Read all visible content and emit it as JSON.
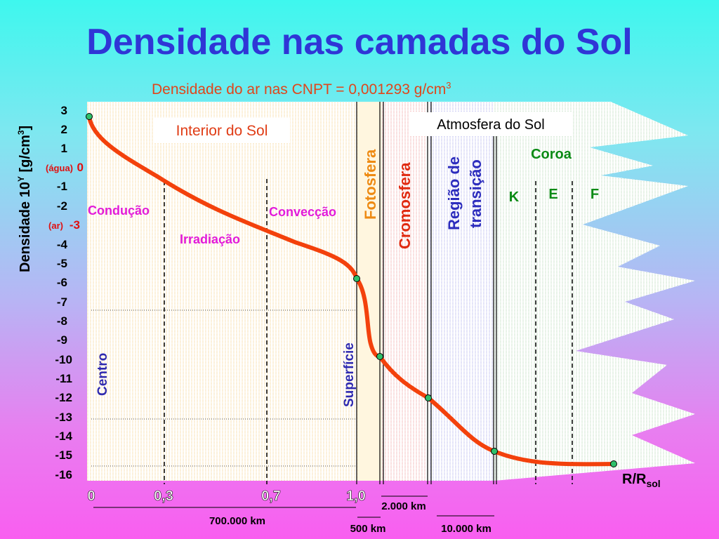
{
  "title": "Densidade nas camadas do Sol",
  "chart_data": {
    "type": "line",
    "subtitle": "Densidade do ar nas CNPT = 0,001293 g/cm",
    "subtitle_sup": "3",
    "ylabel": "Densidade 10",
    "ylabel_sup": "Y",
    "ylabel_unit": " [g/cm",
    "ylabel_unit_sup": "3",
    "ylabel_end": "]",
    "yticks": [
      "3",
      "2",
      "1",
      "0",
      "-1",
      "-2",
      "-3",
      "-4",
      "-5",
      "-6",
      "-7",
      "-8",
      "-9",
      "-10",
      "-11",
      "-12",
      "-13",
      "-14",
      "-15",
      "-16"
    ],
    "ytick_notes": {
      "agua": "(água)",
      "ar": "(ar)"
    },
    "xticks": [
      "0",
      "0,3",
      "0,7",
      "1,0"
    ],
    "xlabel": "R/R",
    "xlabel_sub": "sol",
    "scale_labels": {
      "a": "700.000 km",
      "b": "2.000 km",
      "c": "500 km",
      "d": "10.000 km"
    },
    "regions": {
      "interior": "Interior do Sol",
      "atmosfera": "Atmosfera do Sol",
      "coroa": "Coroa",
      "conducao": "Condução",
      "conveccao": "Convecção",
      "irradiacao": "Irradiação",
      "centro": "Centro",
      "superficie": "Superfície",
      "fotosfera": "Fotosfera",
      "cromosfera": "Cromosfera",
      "regiao1": "Região de",
      "regiao2": "transição",
      "k": "K",
      "e": "E",
      "f": "F"
    },
    "ylim": [
      -16,
      3
    ],
    "series": [
      {
        "color": "#f3410c",
        "points": [
          {
            "x": 0,
            "y": 2.6
          },
          {
            "x": 0.05,
            "y": 0.8
          },
          {
            "x": 0.15,
            "y": -0.5
          },
          {
            "x": 0.3,
            "y": -1.4
          },
          {
            "x": 0.5,
            "y": -2.4
          },
          {
            "x": 0.7,
            "y": -3.4
          },
          {
            "x": 0.9,
            "y": -4.6
          },
          {
            "x": 1.0,
            "y": -5.8
          }
        ]
      }
    ],
    "markers_y": [
      2.6,
      -5.8,
      -9.8,
      -11.9,
      -15.2,
      -15.6
    ]
  }
}
